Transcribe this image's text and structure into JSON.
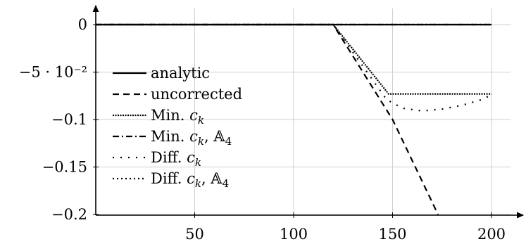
{
  "chart_data": {
    "type": "line",
    "xlim": [
      0,
      200
    ],
    "ylim": [
      -0.2,
      0.015
    ],
    "grid": true,
    "legend_position": "bottom-left",
    "x_ticks": [
      {
        "value": 50,
        "label": "50"
      },
      {
        "value": 100,
        "label": "100"
      },
      {
        "value": 150,
        "label": "150"
      },
      {
        "value": 200,
        "label": "200"
      }
    ],
    "y_ticks": [
      {
        "value": 0,
        "label": "0"
      },
      {
        "value": -0.05,
        "label": "−5 · 10⁻²"
      },
      {
        "value": -0.1,
        "label": "−0.1"
      },
      {
        "value": -0.15,
        "label": "−0.15"
      },
      {
        "value": -0.2,
        "label": "−0.2"
      }
    ],
    "series": [
      {
        "name": "analytic",
        "style": "solid",
        "x": [
          0,
          200
        ],
        "y": [
          0,
          0
        ]
      },
      {
        "name": "uncorrected",
        "style": "dashed",
        "x": [
          0,
          120,
          150,
          173
        ],
        "y": [
          0,
          0,
          -0.1,
          -0.2
        ]
      },
      {
        "name": "Min. c_k",
        "style": "densely-dotted",
        "x": [
          0,
          120,
          148,
          200
        ],
        "y": [
          0,
          0,
          -0.073,
          -0.073
        ]
      },
      {
        "name": "Min. c_k, A_4",
        "style": "dash-dot",
        "x": [
          0,
          120,
          200
        ],
        "y": [
          0,
          0,
          0
        ]
      },
      {
        "name": "Diff. c_k",
        "style": "loosely-dotted",
        "x": [
          0,
          120,
          147,
          155,
          165,
          175,
          185,
          195,
          200
        ],
        "y": [
          0,
          0,
          -0.079,
          -0.088,
          -0.091,
          -0.089,
          -0.085,
          -0.079,
          -0.074
        ]
      },
      {
        "name": "Diff. c_k, A_4",
        "style": "dotted",
        "x": [
          0,
          120,
          200
        ],
        "y": [
          0,
          0,
          0
        ]
      }
    ]
  },
  "legend": {
    "items": [
      {
        "prefix": "analytic",
        "math": "",
        "suffix": ""
      },
      {
        "prefix": "uncorrected",
        "math": "",
        "suffix": ""
      },
      {
        "prefix": "Min. ",
        "math": "c",
        "sub": "k",
        "suffix": ""
      },
      {
        "prefix": "Min. ",
        "math": "c",
        "sub": "k",
        "suffix": ", 𝔸",
        "suffix_sub": "4"
      },
      {
        "prefix": "Diff. ",
        "math": "c",
        "sub": "k",
        "suffix": ""
      },
      {
        "prefix": "Diff. ",
        "math": "c",
        "sub": "k",
        "suffix": ", 𝔸",
        "suffix_sub": "4"
      }
    ]
  }
}
